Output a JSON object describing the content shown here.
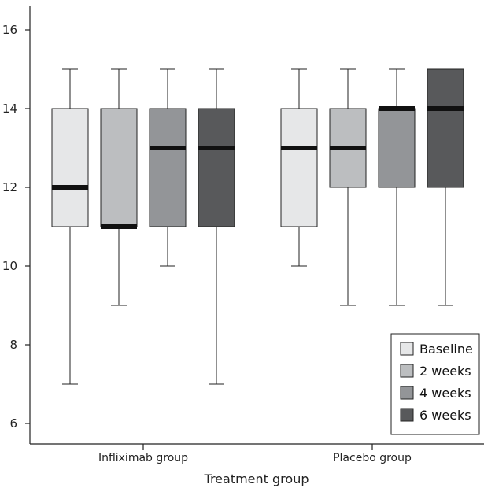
{
  "chart_data": {
    "type": "boxplot",
    "xlabel": "Treatment group",
    "ylabel": "",
    "ylim": [
      5.5,
      16.6
    ],
    "yticks": [
      6,
      8,
      10,
      12,
      14,
      16
    ],
    "groups": [
      "Infliximab group",
      "Placebo group"
    ],
    "legend_position": "bottom-right",
    "series": [
      {
        "name": "Baseline",
        "color": "#e6e7e8",
        "boxes": [
          {
            "group": "Infliximab group",
            "min": 7,
            "q1": 11,
            "median": 12,
            "q3": 14,
            "max": 15
          },
          {
            "group": "Placebo group",
            "min": 10,
            "q1": 11,
            "median": 13,
            "q3": 14,
            "max": 15
          }
        ]
      },
      {
        "name": "2 weeks",
        "color": "#bcbec0",
        "boxes": [
          {
            "group": "Infliximab group",
            "min": 9,
            "q1": 11,
            "median": 11,
            "q3": 14,
            "max": 15
          },
          {
            "group": "Placebo group",
            "min": 9,
            "q1": 12,
            "median": 13,
            "q3": 14,
            "max": 15
          }
        ]
      },
      {
        "name": "4 weeks",
        "color": "#939598",
        "boxes": [
          {
            "group": "Infliximab group",
            "min": 10,
            "q1": 11,
            "median": 13,
            "q3": 14,
            "max": 15
          },
          {
            "group": "Placebo group",
            "min": 9,
            "q1": 12,
            "median": 14,
            "q3": 14,
            "max": 15
          }
        ]
      },
      {
        "name": "6 weeks",
        "color": "#58595b",
        "boxes": [
          {
            "group": "Infliximab group",
            "min": 7,
            "q1": 11,
            "median": 13,
            "q3": 14,
            "max": 15
          },
          {
            "group": "Placebo group",
            "min": 9,
            "q1": 12,
            "median": 14,
            "q3": 15,
            "max": 15
          }
        ]
      }
    ]
  }
}
